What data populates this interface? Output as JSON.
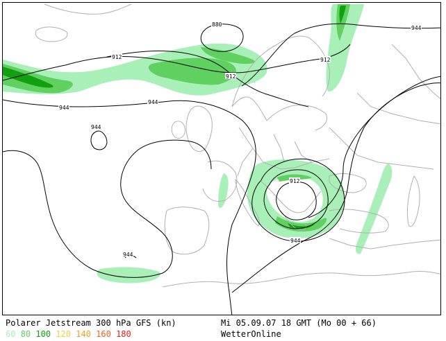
{
  "footer": {
    "title": "Polarer Jetstream 300 hPa GFS (kn)",
    "valid_time": "Mi 05.09.07 18 GMT (Mo 00 + 66)",
    "brand": "WetterOnline"
  },
  "legend": [
    {
      "label": "60",
      "color": "#a8f0b8"
    },
    {
      "label": "80",
      "color": "#60d060"
    },
    {
      "label": "100",
      "color": "#10a010"
    },
    {
      "label": "120",
      "color": "#f0d040"
    },
    {
      "label": "140",
      "color": "#f0a020"
    },
    {
      "label": "160",
      "color": "#f06020"
    },
    {
      "label": "180",
      "color": "#e02020"
    }
  ],
  "contour_labels": {
    "c880": "880",
    "c912_north": "912",
    "c912_center": "912",
    "c912_ne": "912",
    "c944_ne": "944",
    "c944_west": "944",
    "c944_mid": "944",
    "c944_small": "944",
    "c944_balkan": "944",
    "c944_ocean": "944",
    "c912_balkan": "912"
  }
}
